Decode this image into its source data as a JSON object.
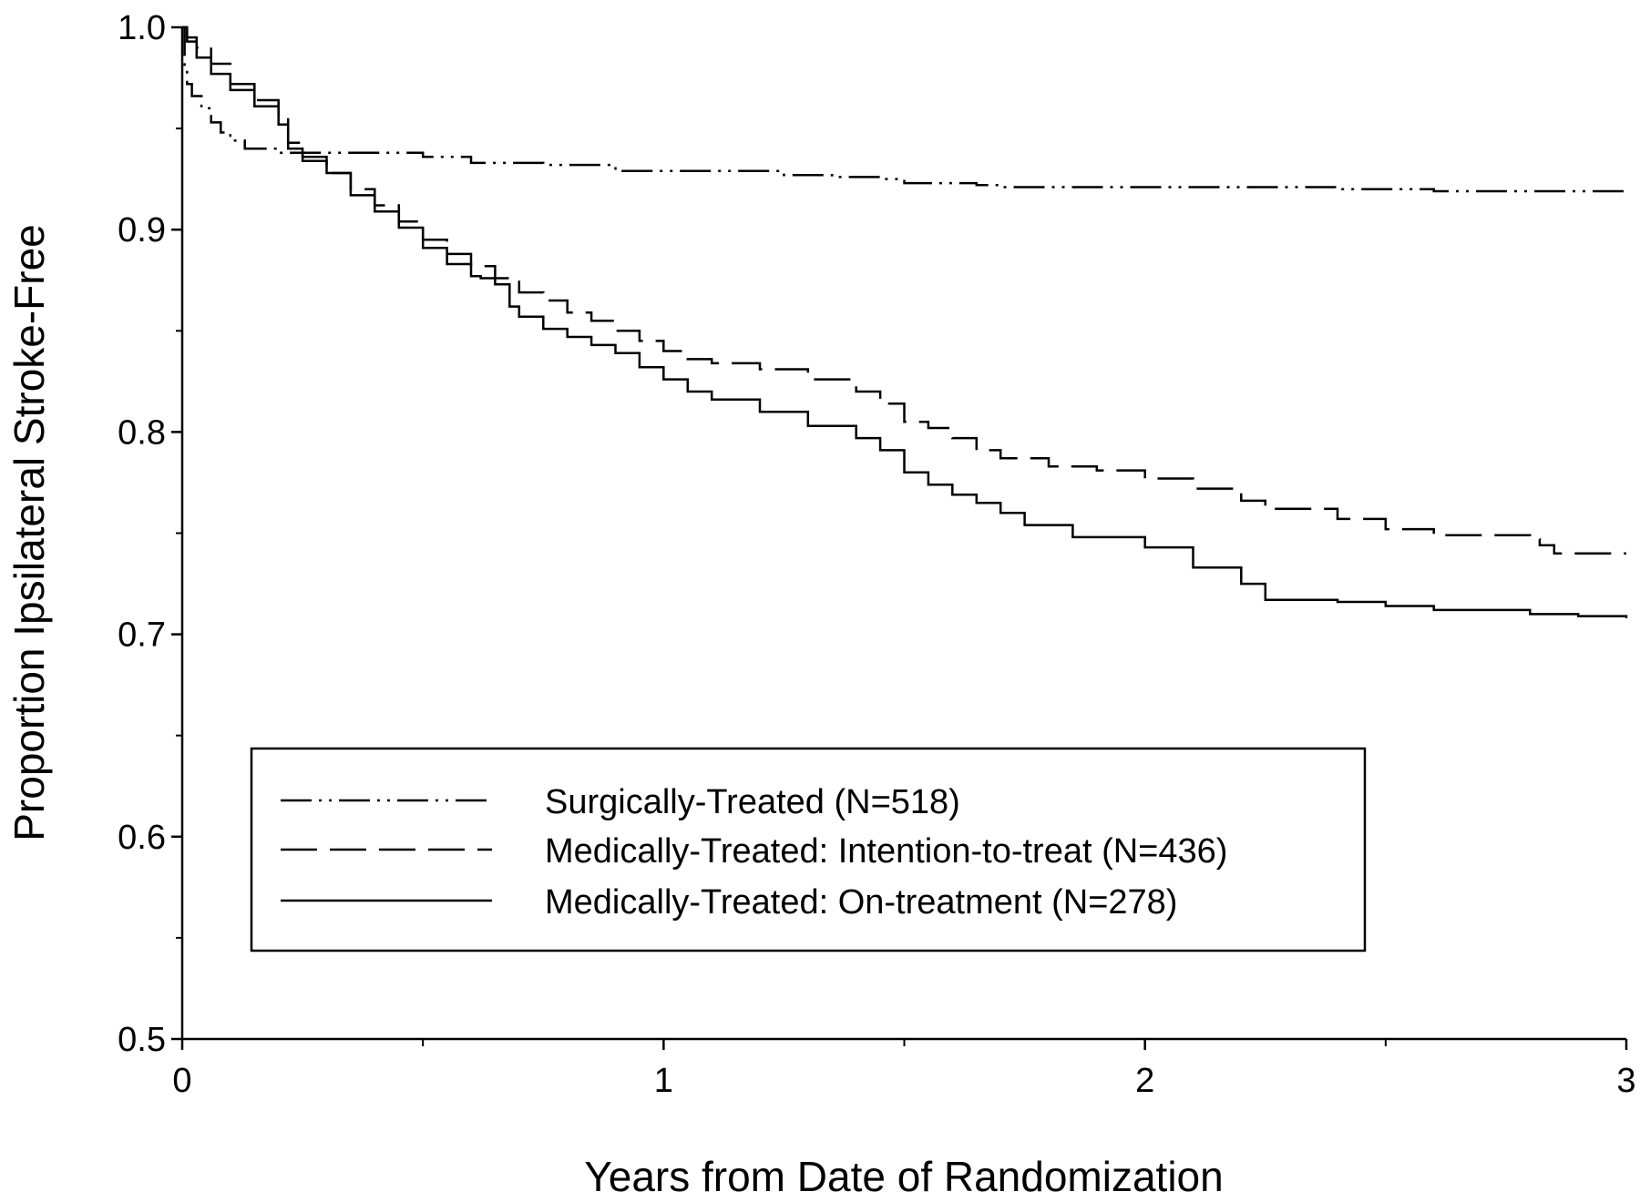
{
  "chart_data": {
    "type": "line",
    "title": "",
    "xlabel": "Years from Date of Randomization",
    "ylabel": "Proportion Ipsilateral Stroke-Free",
    "xlim": [
      0,
      3
    ],
    "ylim": [
      0.5,
      1.0
    ],
    "x_major_ticks": [
      0,
      1,
      2,
      3
    ],
    "x_tick_labels": [
      "0",
      "1",
      "2",
      "3"
    ],
    "x_minor_ticks": [
      0.5,
      1.5,
      2.5
    ],
    "y_major_ticks": [
      0.5,
      0.6,
      0.7,
      0.8,
      0.9,
      1.0
    ],
    "y_tick_labels": [
      "0.5",
      "0.6",
      "0.7",
      "0.8",
      "0.9",
      "1.0"
    ],
    "y_minor_ticks": [
      0.55,
      0.65,
      0.75,
      0.85,
      0.95
    ],
    "grid": false,
    "legend_position": "lower-center",
    "series": [
      {
        "name": "Surgically-Treated (N=518)",
        "line_style": "dash-dot-dot",
        "color": "#000000",
        "x": [
          0,
          0.005,
          0.01,
          0.02,
          0.04,
          0.06,
          0.08,
          0.1,
          0.13,
          0.2,
          0.3,
          0.4,
          0.5,
          0.6,
          0.75,
          0.9,
          1.0,
          1.1,
          1.25,
          1.35,
          1.45,
          1.5,
          1.65,
          1.7,
          1.8,
          2.0,
          2.2,
          2.4,
          2.6,
          2.8,
          3.0
        ],
        "y": [
          1.0,
          0.98,
          0.972,
          0.966,
          0.96,
          0.953,
          0.948,
          0.944,
          0.94,
          0.938,
          0.938,
          0.938,
          0.936,
          0.933,
          0.932,
          0.929,
          0.929,
          0.929,
          0.927,
          0.926,
          0.925,
          0.923,
          0.922,
          0.921,
          0.921,
          0.921,
          0.921,
          0.92,
          0.919,
          0.919,
          0.919
        ]
      },
      {
        "name": "Medically-Treated: Intention-to-treat (N=436)",
        "line_style": "long-dash",
        "color": "#000000",
        "x": [
          0,
          0.01,
          0.03,
          0.06,
          0.1,
          0.15,
          0.2,
          0.22,
          0.25,
          0.3,
          0.35,
          0.4,
          0.45,
          0.5,
          0.55,
          0.6,
          0.65,
          0.7,
          0.75,
          0.8,
          0.85,
          0.9,
          0.95,
          1.0,
          1.05,
          1.1,
          1.2,
          1.3,
          1.4,
          1.45,
          1.5,
          1.55,
          1.6,
          1.65,
          1.7,
          1.8,
          1.9,
          2.0,
          2.1,
          2.2,
          2.25,
          2.4,
          2.5,
          2.6,
          2.8,
          2.82,
          2.85,
          3.0
        ],
        "y": [
          1.0,
          0.995,
          0.99,
          0.982,
          0.972,
          0.964,
          0.956,
          0.943,
          0.936,
          0.928,
          0.92,
          0.912,
          0.904,
          0.895,
          0.888,
          0.882,
          0.876,
          0.869,
          0.865,
          0.859,
          0.855,
          0.85,
          0.845,
          0.84,
          0.836,
          0.834,
          0.831,
          0.826,
          0.82,
          0.814,
          0.805,
          0.802,
          0.797,
          0.791,
          0.787,
          0.783,
          0.781,
          0.777,
          0.772,
          0.766,
          0.762,
          0.757,
          0.752,
          0.749,
          0.747,
          0.744,
          0.74,
          0.74
        ]
      },
      {
        "name": "Medically-Treated: On-treatment (N=278)",
        "line_style": "solid",
        "color": "#000000",
        "x": [
          0,
          0.01,
          0.03,
          0.06,
          0.1,
          0.15,
          0.2,
          0.22,
          0.25,
          0.3,
          0.35,
          0.4,
          0.45,
          0.5,
          0.55,
          0.6,
          0.62,
          0.65,
          0.68,
          0.7,
          0.75,
          0.8,
          0.85,
          0.9,
          0.95,
          1.0,
          1.05,
          1.1,
          1.2,
          1.3,
          1.4,
          1.45,
          1.5,
          1.55,
          1.6,
          1.65,
          1.7,
          1.75,
          1.85,
          2.0,
          2.1,
          2.2,
          2.25,
          2.4,
          2.5,
          2.6,
          2.8,
          2.9,
          3.0
        ],
        "y": [
          1.0,
          0.993,
          0.985,
          0.977,
          0.969,
          0.961,
          0.952,
          0.94,
          0.934,
          0.928,
          0.917,
          0.909,
          0.901,
          0.891,
          0.883,
          0.877,
          0.876,
          0.873,
          0.862,
          0.857,
          0.851,
          0.847,
          0.843,
          0.839,
          0.832,
          0.826,
          0.82,
          0.816,
          0.81,
          0.803,
          0.797,
          0.791,
          0.78,
          0.774,
          0.769,
          0.765,
          0.76,
          0.754,
          0.748,
          0.743,
          0.733,
          0.725,
          0.717,
          0.716,
          0.714,
          0.712,
          0.71,
          0.709,
          0.708
        ]
      }
    ]
  }
}
